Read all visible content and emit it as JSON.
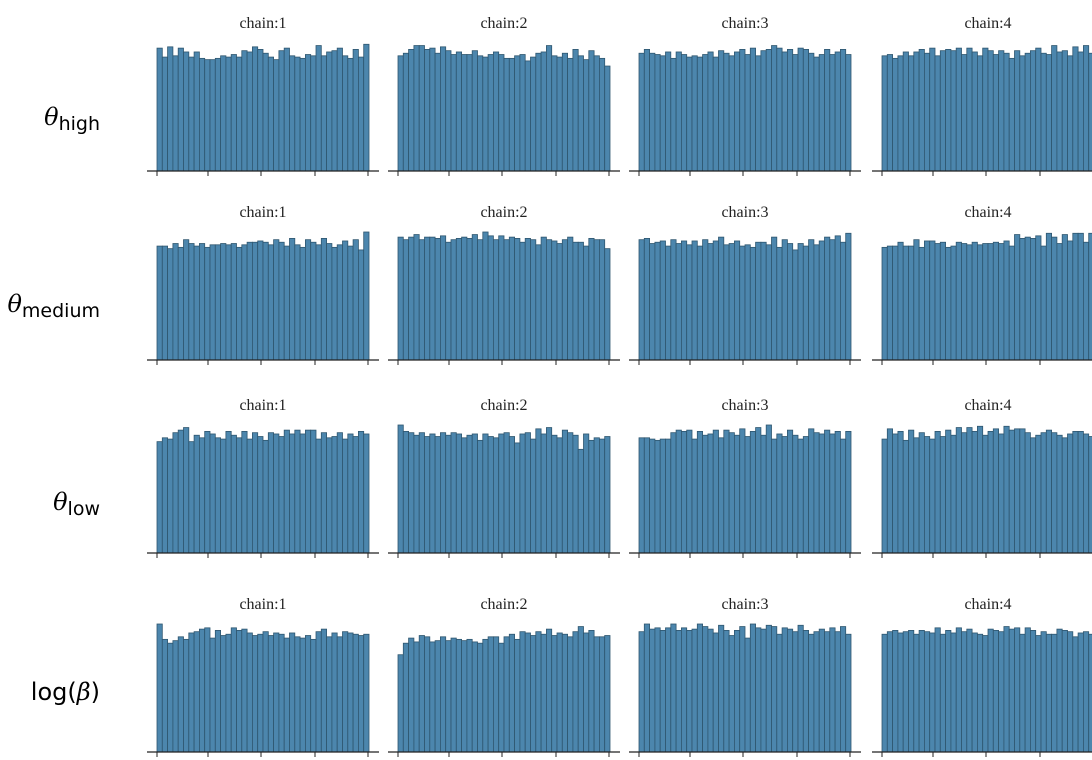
{
  "chart_data": {
    "type": "bar",
    "layout": "grid 4 rows x 4 columns of rank-plot histograms",
    "rows": [
      {
        "label_symbol": "θ",
        "label_sub": "high"
      },
      {
        "label_symbol": "θ",
        "label_sub": "medium"
      },
      {
        "label_symbol": "θ",
        "label_sub": "low"
      },
      {
        "label_prefix": "log(",
        "label_symbol": "β",
        "label_suffix": ")"
      }
    ],
    "columns": [
      "chain:1",
      "chain:2",
      "chain:3",
      "chain:4"
    ],
    "bins": 40,
    "grid": false,
    "colors": {
      "bar_fill": "#4c86ad",
      "bar_edge": "#2e566f"
    },
    "panels": [
      [
        {
          "title": "chain:1",
          "values": [
            0.96,
            0.89,
            0.97,
            0.9,
            0.96,
            0.93,
            0.89,
            0.93,
            0.88,
            0.87,
            0.87,
            0.88,
            0.9,
            0.89,
            0.91,
            0.89,
            0.94,
            0.93,
            0.97,
            0.95,
            0.92,
            0.89,
            0.87,
            0.94,
            0.96,
            0.9,
            0.89,
            0.88,
            0.91,
            0.9,
            0.98,
            0.9,
            0.93,
            0.94,
            0.96,
            0.9,
            0.88,
            0.95,
            0.89,
            0.99
          ]
        },
        {
          "title": "chain:2",
          "values": [
            0.9,
            0.92,
            0.95,
            0.98,
            0.98,
            0.95,
            0.96,
            0.92,
            0.97,
            0.94,
            0.91,
            0.93,
            0.91,
            0.91,
            0.94,
            0.9,
            0.89,
            0.91,
            0.93,
            0.91,
            0.88,
            0.88,
            0.9,
            0.91,
            0.86,
            0.89,
            0.92,
            0.93,
            0.98,
            0.9,
            0.89,
            0.92,
            0.88,
            0.95,
            0.9,
            0.87,
            0.94,
            0.9,
            0.88,
            0.82
          ]
        },
        {
          "title": "chain:3",
          "values": [
            0.92,
            0.95,
            0.92,
            0.91,
            0.9,
            0.93,
            0.88,
            0.93,
            0.91,
            0.89,
            0.9,
            0.89,
            0.91,
            0.93,
            0.89,
            0.94,
            0.92,
            0.9,
            0.93,
            0.95,
            0.91,
            0.96,
            0.9,
            0.94,
            0.95,
            0.98,
            0.96,
            0.93,
            0.95,
            0.91,
            0.96,
            0.95,
            0.92,
            0.89,
            0.91,
            0.95,
            0.91,
            0.93,
            0.95,
            0.91
          ]
        },
        {
          "title": "chain:4",
          "values": [
            0.9,
            0.91,
            0.88,
            0.9,
            0.93,
            0.9,
            0.93,
            0.95,
            0.92,
            0.96,
            0.9,
            0.94,
            0.95,
            0.94,
            0.96,
            0.91,
            0.96,
            0.93,
            0.9,
            0.96,
            0.94,
            0.91,
            0.94,
            0.92,
            0.88,
            0.94,
            0.9,
            0.92,
            0.94,
            0.96,
            0.92,
            0.91,
            0.98,
            0.93,
            0.94,
            0.9,
            0.97,
            0.93,
            0.98,
            0.92
          ]
        }
      ],
      [
        {
          "title": "chain:1",
          "values": [
            0.89,
            0.89,
            0.87,
            0.91,
            0.88,
            0.94,
            0.91,
            0.89,
            0.91,
            0.88,
            0.9,
            0.9,
            0.91,
            0.9,
            0.91,
            0.88,
            0.9,
            0.92,
            0.92,
            0.93,
            0.92,
            0.9,
            0.94,
            0.92,
            0.89,
            0.95,
            0.9,
            0.88,
            0.94,
            0.92,
            0.9,
            0.95,
            0.91,
            0.88,
            0.9,
            0.93,
            0.89,
            0.94,
            0.86,
            1.0
          ]
        },
        {
          "title": "chain:2",
          "values": [
            0.96,
            0.94,
            0.96,
            0.98,
            0.94,
            0.96,
            0.96,
            0.95,
            0.97,
            0.92,
            0.94,
            0.95,
            0.96,
            0.95,
            0.98,
            0.94,
            1.0,
            0.97,
            0.94,
            0.97,
            0.94,
            0.96,
            0.95,
            0.92,
            0.95,
            0.94,
            0.9,
            0.96,
            0.94,
            0.93,
            0.91,
            0.94,
            0.96,
            0.92,
            0.92,
            0.89,
            0.95,
            0.94,
            0.94,
            0.87
          ]
        },
        {
          "title": "chain:3",
          "values": [
            0.94,
            0.95,
            0.91,
            0.92,
            0.93,
            0.89,
            0.94,
            0.91,
            0.93,
            0.9,
            0.93,
            0.89,
            0.94,
            0.91,
            0.93,
            0.96,
            0.9,
            0.91,
            0.93,
            0.89,
            0.9,
            0.88,
            0.92,
            0.92,
            0.9,
            0.96,
            0.88,
            0.94,
            0.91,
            0.86,
            0.91,
            0.89,
            0.94,
            0.9,
            0.93,
            0.96,
            0.94,
            0.97,
            0.92,
            0.99
          ]
        },
        {
          "title": "chain:4",
          "values": [
            0.88,
            0.89,
            0.89,
            0.92,
            0.89,
            0.89,
            0.94,
            0.88,
            0.93,
            0.93,
            0.91,
            0.92,
            0.88,
            0.89,
            0.92,
            0.91,
            0.9,
            0.92,
            0.9,
            0.91,
            0.91,
            0.92,
            0.91,
            0.93,
            0.89,
            0.98,
            0.95,
            0.96,
            0.95,
            0.97,
            0.89,
            0.99,
            0.96,
            0.91,
            0.98,
            0.93,
            0.99,
            0.99,
            0.92,
            0.99
          ]
        }
      ],
      [
        {
          "title": "chain:1",
          "values": [
            0.87,
            0.9,
            0.89,
            0.94,
            0.96,
            0.98,
            0.87,
            0.92,
            0.9,
            0.95,
            0.93,
            0.9,
            0.89,
            0.95,
            0.92,
            0.9,
            0.95,
            0.89,
            0.94,
            0.91,
            0.88,
            0.94,
            0.93,
            0.91,
            0.96,
            0.93,
            0.96,
            0.93,
            0.96,
            0.96,
            0.89,
            0.94,
            0.9,
            0.91,
            0.94,
            0.89,
            0.93,
            0.91,
            0.95,
            0.93
          ]
        },
        {
          "title": "chain:2",
          "values": [
            1.0,
            0.95,
            0.94,
            0.92,
            0.94,
            0.91,
            0.93,
            0.91,
            0.94,
            0.92,
            0.94,
            0.93,
            0.9,
            0.92,
            0.93,
            0.88,
            0.93,
            0.91,
            0.9,
            0.93,
            0.94,
            0.91,
            0.86,
            0.93,
            0.94,
            0.89,
            0.97,
            0.93,
            0.98,
            0.92,
            0.9,
            0.96,
            0.94,
            0.92,
            0.81,
            0.93,
            0.88,
            0.9,
            0.89,
            0.91
          ]
        },
        {
          "title": "chain:3",
          "values": [
            0.9,
            0.9,
            0.89,
            0.88,
            0.89,
            0.89,
            0.94,
            0.96,
            0.95,
            0.96,
            0.89,
            0.95,
            0.92,
            0.93,
            0.96,
            0.9,
            0.96,
            0.94,
            0.92,
            0.97,
            0.91,
            0.95,
            0.98,
            0.92,
            1.0,
            0.89,
            0.93,
            0.91,
            0.96,
            0.92,
            0.89,
            0.91,
            0.97,
            0.94,
            0.93,
            0.96,
            0.93,
            0.95,
            0.89,
            0.95
          ]
        },
        {
          "title": "chain:4",
          "values": [
            0.89,
            0.97,
            0.93,
            0.95,
            0.88,
            0.96,
            0.9,
            0.94,
            0.91,
            0.89,
            0.95,
            0.91,
            0.96,
            0.92,
            0.98,
            0.94,
            0.98,
            0.95,
            0.99,
            0.92,
            0.95,
            0.97,
            0.93,
            0.99,
            0.96,
            0.97,
            0.97,
            0.94,
            0.9,
            0.92,
            0.94,
            0.96,
            0.94,
            0.92,
            0.9,
            0.93,
            0.95,
            0.95,
            0.93,
            0.91
          ]
        }
      ],
      [
        {
          "title": "chain:1",
          "values": [
            1.0,
            0.88,
            0.85,
            0.87,
            0.9,
            0.88,
            0.93,
            0.94,
            0.96,
            0.97,
            0.89,
            0.95,
            0.91,
            0.92,
            0.97,
            0.95,
            0.96,
            0.93,
            0.91,
            0.92,
            0.94,
            0.91,
            0.93,
            0.92,
            0.89,
            0.93,
            0.9,
            0.89,
            0.91,
            0.88,
            0.94,
            0.96,
            0.9,
            0.93,
            0.9,
            0.94,
            0.93,
            0.92,
            0.91,
            0.92
          ]
        },
        {
          "title": "chain:2",
          "values": [
            0.76,
            0.85,
            0.89,
            0.86,
            0.91,
            0.9,
            0.86,
            0.87,
            0.9,
            0.87,
            0.89,
            0.88,
            0.87,
            0.88,
            0.86,
            0.85,
            0.88,
            0.9,
            0.9,
            0.85,
            0.9,
            0.92,
            0.88,
            0.94,
            0.93,
            0.91,
            0.94,
            0.92,
            0.96,
            0.91,
            0.93,
            0.92,
            0.9,
            0.94,
            0.98,
            0.93,
            0.95,
            0.9,
            0.9,
            0.91
          ]
        },
        {
          "title": "chain:3",
          "values": [
            0.94,
            1.0,
            0.96,
            0.97,
            0.95,
            0.97,
            1.0,
            0.95,
            0.97,
            0.95,
            0.96,
            1.0,
            0.98,
            0.96,
            0.93,
            0.99,
            0.95,
            0.91,
            0.95,
            0.98,
            0.89,
            1.0,
            0.97,
            0.96,
            0.99,
            0.98,
            0.92,
            0.97,
            0.96,
            0.94,
            0.99,
            0.95,
            0.92,
            0.94,
            0.96,
            0.94,
            0.97,
            0.94,
            0.98,
            0.92
          ]
        },
        {
          "title": "chain:4",
          "values": [
            0.92,
            0.94,
            0.95,
            0.93,
            0.94,
            0.95,
            0.92,
            0.95,
            0.94,
            0.93,
            0.97,
            0.92,
            0.95,
            0.93,
            0.97,
            0.94,
            0.96,
            0.93,
            0.92,
            0.91,
            0.96,
            0.95,
            0.94,
            0.98,
            0.96,
            0.97,
            0.92,
            0.97,
            0.95,
            0.91,
            0.94,
            0.92,
            0.92,
            0.96,
            0.95,
            0.94,
            0.9,
            0.93,
            0.94,
            0.92
          ]
        }
      ]
    ]
  }
}
